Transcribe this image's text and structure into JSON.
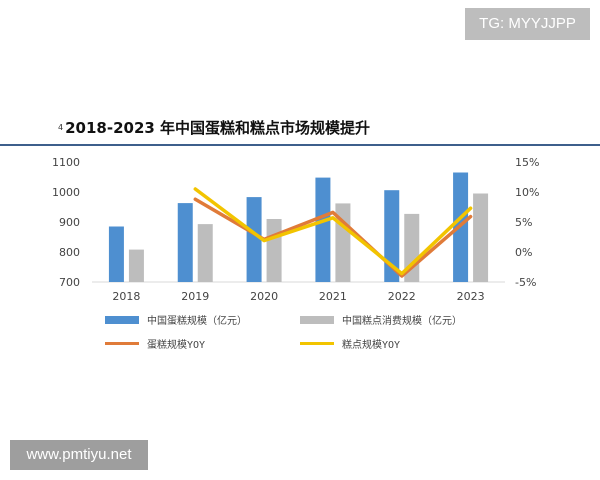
{
  "watermark_top": "TG: MYYJJPP",
  "watermark_bottom": "www.pmtiyu.net",
  "title_marker": "4",
  "chart_data": {
    "type": "bar",
    "title": "2018-2023 年中国蛋糕和糕点市场规模提升",
    "categories": [
      "2018",
      "2019",
      "2020",
      "2021",
      "2022",
      "2023"
    ],
    "left_axis": {
      "ylim": [
        700,
        1100
      ],
      "ticks": [
        "1100",
        "1000",
        "900",
        "800",
        "700"
      ],
      "tick_values": [
        1100,
        1000,
        900,
        800,
        700
      ]
    },
    "right_axis": {
      "ylim": [
        -5,
        15
      ],
      "ticks": [
        "15%",
        "10%",
        "5%",
        "0%",
        "-5%"
      ],
      "tick_values": [
        15,
        10,
        5,
        0,
        -5
      ]
    },
    "bar_series": [
      {
        "name": "中国蛋糕规模（亿元）",
        "color": "#4e8fd0",
        "values": [
          885,
          963,
          983,
          1048,
          1006,
          1065
        ]
      },
      {
        "name": "中国糕点消费规模（亿元）",
        "color": "#bdbdbd",
        "values": [
          808,
          893,
          910,
          962,
          927,
          995
        ]
      }
    ],
    "line_series": [
      {
        "name": "蛋糕规模YOY",
        "color": "#e07b39",
        "x": [
          "2019",
          "2020",
          "2021",
          "2022",
          "2023"
        ],
        "values": [
          8.8,
          2.1,
          6.6,
          -4.0,
          5.9
        ]
      },
      {
        "name": "糕点规模YOY",
        "color": "#f2c400",
        "x": [
          "2019",
          "2020",
          "2021",
          "2022",
          "2023"
        ],
        "values": [
          10.5,
          1.9,
          5.7,
          -3.6,
          7.3
        ]
      }
    ],
    "grid": false,
    "legend_position": "bottom"
  }
}
